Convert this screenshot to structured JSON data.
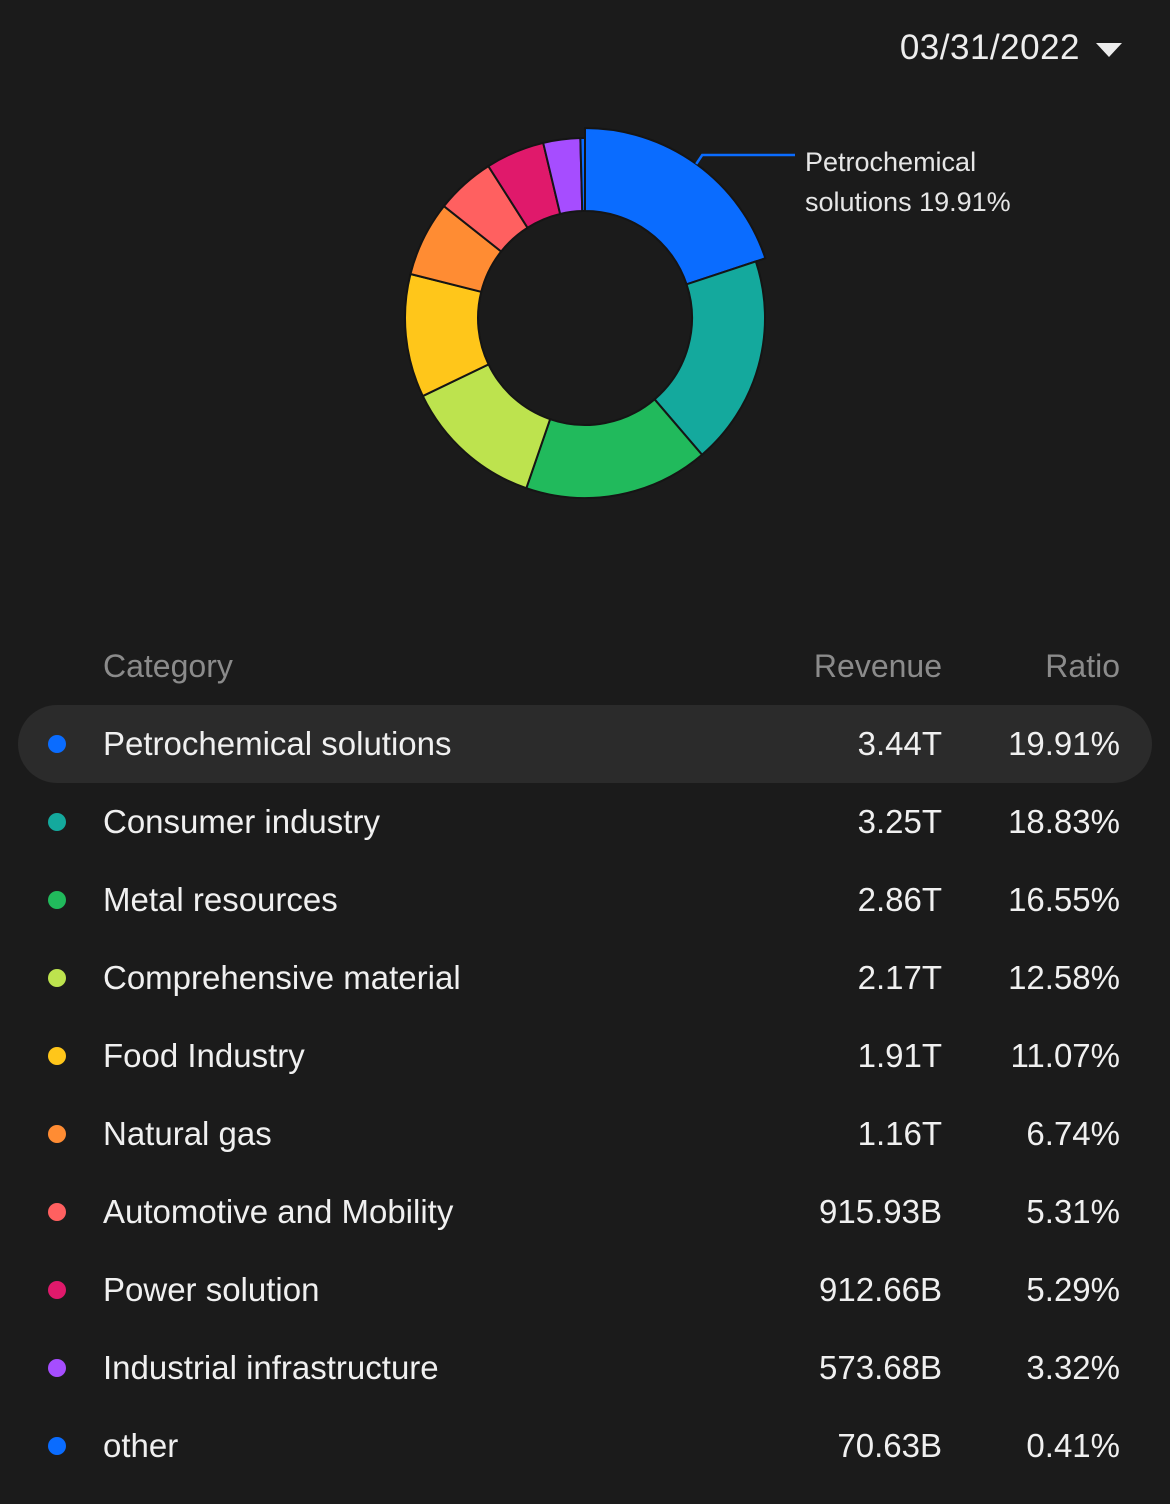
{
  "header": {
    "date": "03/31/2022"
  },
  "callout": {
    "label": "Petrochemical solutions 19.91%"
  },
  "table": {
    "headers": {
      "category": "Category",
      "revenue": "Revenue",
      "ratio": "Ratio"
    },
    "rows": [
      {
        "category": "Petrochemical solutions",
        "revenue": "3.44T",
        "ratio": "19.91%",
        "color": "#0a6cff"
      },
      {
        "category": "Consumer industry",
        "revenue": "3.25T",
        "ratio": "18.83%",
        "color": "#14a99d"
      },
      {
        "category": "Metal resources",
        "revenue": "2.86T",
        "ratio": "16.55%",
        "color": "#21ba5c"
      },
      {
        "category": "Comprehensive material",
        "revenue": "2.17T",
        "ratio": "12.58%",
        "color": "#bde34e"
      },
      {
        "category": "Food Industry",
        "revenue": "1.91T",
        "ratio": "11.07%",
        "color": "#ffc61a"
      },
      {
        "category": "Natural gas",
        "revenue": "1.16T",
        "ratio": "6.74%",
        "color": "#ff8c33"
      },
      {
        "category": "Automotive and Mobility",
        "revenue": "915.93B",
        "ratio": "5.31%",
        "color": "#ff6060"
      },
      {
        "category": "Power solution",
        "revenue": "912.66B",
        "ratio": "5.29%",
        "color": "#e0196b"
      },
      {
        "category": "Industrial infrastructure",
        "revenue": "573.68B",
        "ratio": "3.32%",
        "color": "#a64dff"
      },
      {
        "category": "other",
        "revenue": "70.63B",
        "ratio": "0.41%",
        "color": "#0a6cff"
      }
    ]
  },
  "chart_data": {
    "type": "pie",
    "categories": [
      "Petrochemical solutions",
      "Consumer industry",
      "Metal resources",
      "Comprehensive material",
      "Food Industry",
      "Natural gas",
      "Automotive and Mobility",
      "Power solution",
      "Industrial infrastructure",
      "other"
    ],
    "values": [
      19.91,
      18.83,
      16.55,
      12.58,
      11.07,
      6.74,
      5.31,
      5.29,
      3.32,
      0.41
    ],
    "colors": [
      "#0a6cff",
      "#14a99d",
      "#21ba5c",
      "#bde34e",
      "#ffc61a",
      "#ff8c33",
      "#ff6060",
      "#e0196b",
      "#a64dff",
      "#0a6cff"
    ],
    "highlighted": "Petrochemical solutions",
    "annotation": "Petrochemical solutions 19.91%"
  }
}
